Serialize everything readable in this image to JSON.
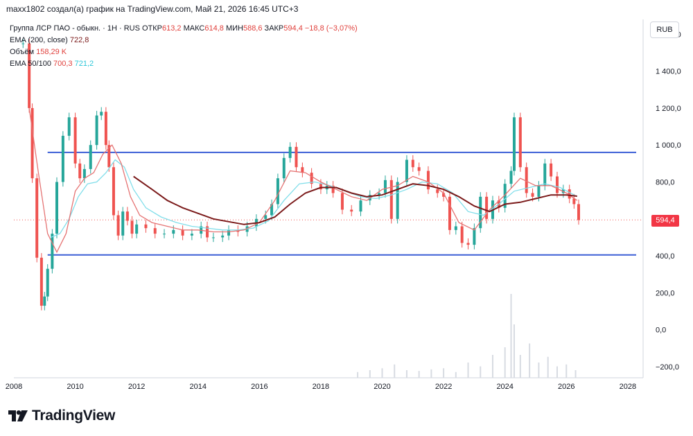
{
  "header": {
    "caption": "maxx1802 создал(а) график на TradingView.com, Май 21, 2026 16:45 UTC+3"
  },
  "legend": {
    "instrument": "Группа ЛСР ПАО - обыкн. · 1Н · RUS",
    "open_label": "ОТКР",
    "open": "613,2",
    "high_label": "МАКС",
    "high": "614,8",
    "low_label": "МИН",
    "low": "588,6",
    "close_label": "ЗАКР",
    "close": "594,4",
    "change": "−18,8 (−3,07%)",
    "ema200_label": "EMA (200, close)",
    "ema200_value": "722,8",
    "volume_label": "Объём",
    "volume_value": "158,29 K",
    "ema50100_label": "EMA 50/100",
    "ema50_value": "700,3",
    "ema100_value": "721,2"
  },
  "unit_button": "RUB",
  "current_price_label": "594,4",
  "footer": {
    "brand": "TradingView"
  },
  "colors": {
    "up": "#26a69a",
    "down": "#ef5350",
    "level_line": "#3c5fd6",
    "ema50": "#e57373",
    "ema100": "#80deea",
    "ema200": "#7b1a1a",
    "volume": "#d7dbe2"
  },
  "chart_data": {
    "type": "line",
    "title": "",
    "xlabel": "",
    "ylabel": "",
    "x_ticks": [
      "2008",
      "2010",
      "2012",
      "2014",
      "2016",
      "2018",
      "2020",
      "2022",
      "2024",
      "2026",
      "2028"
    ],
    "y_ticks": [
      "−200,0",
      "0,0",
      "200,0",
      "400,0",
      "600,0",
      "800,0",
      "1 000,0",
      "1 200,0",
      "1 400,0",
      "1 600,0"
    ],
    "xlim": [
      2008.0,
      2028.5
    ],
    "ylim": [
      -260,
      1680
    ],
    "grid": false,
    "horizontal_levels": [
      960,
      405
    ],
    "dotted_level": 594.4,
    "series": [
      {
        "key": "price",
        "style": "candles",
        "x": [
          2008.3,
          2008.5,
          2008.6,
          2008.75,
          2008.9,
          2009.0,
          2009.1,
          2009.25,
          2009.4,
          2009.6,
          2009.8,
          2010.0,
          2010.15,
          2010.3,
          2010.5,
          2010.7,
          2010.85,
          2011.0,
          2011.1,
          2011.25,
          2011.4,
          2011.55,
          2011.7,
          2011.85,
          2012.0,
          2012.3,
          2012.6,
          2012.9,
          2013.2,
          2013.5,
          2013.8,
          2014.1,
          2014.3,
          2014.5,
          2014.8,
          2015.0,
          2015.3,
          2015.6,
          2015.9,
          2016.2,
          2016.4,
          2016.6,
          2016.8,
          2017.0,
          2017.2,
          2017.4,
          2017.7,
          2018.0,
          2018.2,
          2018.4,
          2018.7,
          2019.0,
          2019.3,
          2019.6,
          2019.9,
          2020.1,
          2020.3,
          2020.5,
          2020.8,
          2021.0,
          2021.2,
          2021.5,
          2021.8,
          2022.0,
          2022.2,
          2022.4,
          2022.6,
          2022.8,
          2023.0,
          2023.2,
          2023.4,
          2023.6,
          2023.8,
          2024.0,
          2024.2,
          2024.3,
          2024.5,
          2024.7,
          2024.9,
          2025.1,
          2025.3,
          2025.5,
          2025.7,
          2025.9,
          2026.1,
          2026.25,
          2026.4
        ],
        "values": [
          1550,
          1200,
          820,
          390,
          130,
          180,
          330,
          520,
          800,
          1050,
          1150,
          900,
          820,
          870,
          1000,
          1160,
          1180,
          1000,
          880,
          620,
          510,
          640,
          590,
          520,
          570,
          550,
          520,
          520,
          540,
          510,
          520,
          560,
          500,
          500,
          510,
          540,
          530,
          560,
          600,
          620,
          680,
          820,
          930,
          990,
          880,
          850,
          790,
          760,
          780,
          740,
          650,
          640,
          700,
          730,
          740,
          810,
          600,
          800,
          920,
          880,
          860,
          760,
          740,
          720,
          540,
          560,
          470,
          460,
          550,
          720,
          600,
          700,
          660,
          790,
          860,
          1150,
          880,
          740,
          720,
          780,
          900,
          830,
          740,
          760,
          710,
          680,
          594
        ]
      },
      {
        "key": "ema50",
        "style": "line",
        "x": [
          2008.5,
          2008.8,
          2009.1,
          2009.4,
          2009.7,
          2010.0,
          2010.3,
          2010.6,
          2010.9,
          2011.2,
          2011.5,
          2011.8,
          2012.1,
          2012.5,
          2013.0,
          2013.5,
          2014.0,
          2014.5,
          2015.0,
          2015.5,
          2016.0,
          2016.5,
          2017.0,
          2017.5,
          2018.0,
          2018.5,
          2019.0,
          2019.5,
          2020.0,
          2020.5,
          2021.0,
          2021.5,
          2022.0,
          2022.5,
          2023.0,
          2023.5,
          2024.0,
          2024.5,
          2025.0,
          2025.5,
          2026.0,
          2026.35
        ],
        "values": [
          1200,
          850,
          520,
          420,
          520,
          750,
          820,
          850,
          950,
          1000,
          900,
          720,
          620,
          580,
          560,
          540,
          540,
          530,
          530,
          540,
          580,
          700,
          860,
          850,
          800,
          760,
          720,
          700,
          760,
          780,
          830,
          800,
          740,
          580,
          540,
          650,
          730,
          820,
          780,
          780,
          740,
          700
        ]
      },
      {
        "key": "ema100",
        "style": "line",
        "x": [
          2009.2,
          2009.5,
          2009.8,
          2010.1,
          2010.4,
          2010.7,
          2011.0,
          2011.3,
          2011.6,
          2011.9,
          2012.3,
          2012.8,
          2013.3,
          2013.8,
          2014.3,
          2014.8,
          2015.3,
          2015.8,
          2016.3,
          2016.8,
          2017.3,
          2017.8,
          2018.3,
          2018.8,
          2019.3,
          2019.8,
          2020.3,
          2020.8,
          2021.3,
          2021.8,
          2022.3,
          2022.8,
          2023.3,
          2023.8,
          2024.3,
          2024.8,
          2025.3,
          2025.8,
          2026.35
        ],
        "values": [
          500,
          520,
          600,
          720,
          790,
          800,
          850,
          920,
          880,
          760,
          660,
          610,
          580,
          560,
          550,
          540,
          540,
          550,
          590,
          700,
          790,
          800,
          780,
          750,
          720,
          710,
          730,
          760,
          800,
          790,
          740,
          640,
          620,
          680,
          750,
          770,
          790,
          770,
          721
        ]
      },
      {
        "key": "ema200",
        "style": "line",
        "x": [
          2011.9,
          2012.5,
          2013.0,
          2013.5,
          2014.0,
          2014.5,
          2015.0,
          2015.5,
          2016.0,
          2016.5,
          2017.0,
          2017.5,
          2018.0,
          2018.5,
          2019.0,
          2019.5,
          2020.0,
          2020.5,
          2021.0,
          2021.5,
          2022.0,
          2022.5,
          2023.0,
          2023.5,
          2024.0,
          2024.5,
          2025.0,
          2025.5,
          2026.0,
          2026.35
        ],
        "values": [
          830,
          760,
          700,
          660,
          630,
          600,
          585,
          570,
          580,
          610,
          680,
          740,
          770,
          770,
          740,
          720,
          730,
          760,
          790,
          780,
          760,
          720,
          670,
          640,
          680,
          690,
          710,
          730,
          730,
          723
        ]
      },
      {
        "key": "volume",
        "style": "bars",
        "x": [
          2019.2,
          2019.6,
          2020.0,
          2020.4,
          2020.8,
          2021.2,
          2021.6,
          2022.0,
          2022.4,
          2022.8,
          2023.2,
          2023.6,
          2024.0,
          2024.2,
          2024.3,
          2024.5,
          2024.8,
          2025.1,
          2025.4,
          2025.7,
          2026.0,
          2026.3
        ],
        "values": [
          15,
          20,
          25,
          35,
          20,
          18,
          22,
          25,
          15,
          40,
          30,
          60,
          80,
          220,
          140,
          60,
          90,
          40,
          55,
          30,
          35,
          20
        ]
      }
    ]
  }
}
